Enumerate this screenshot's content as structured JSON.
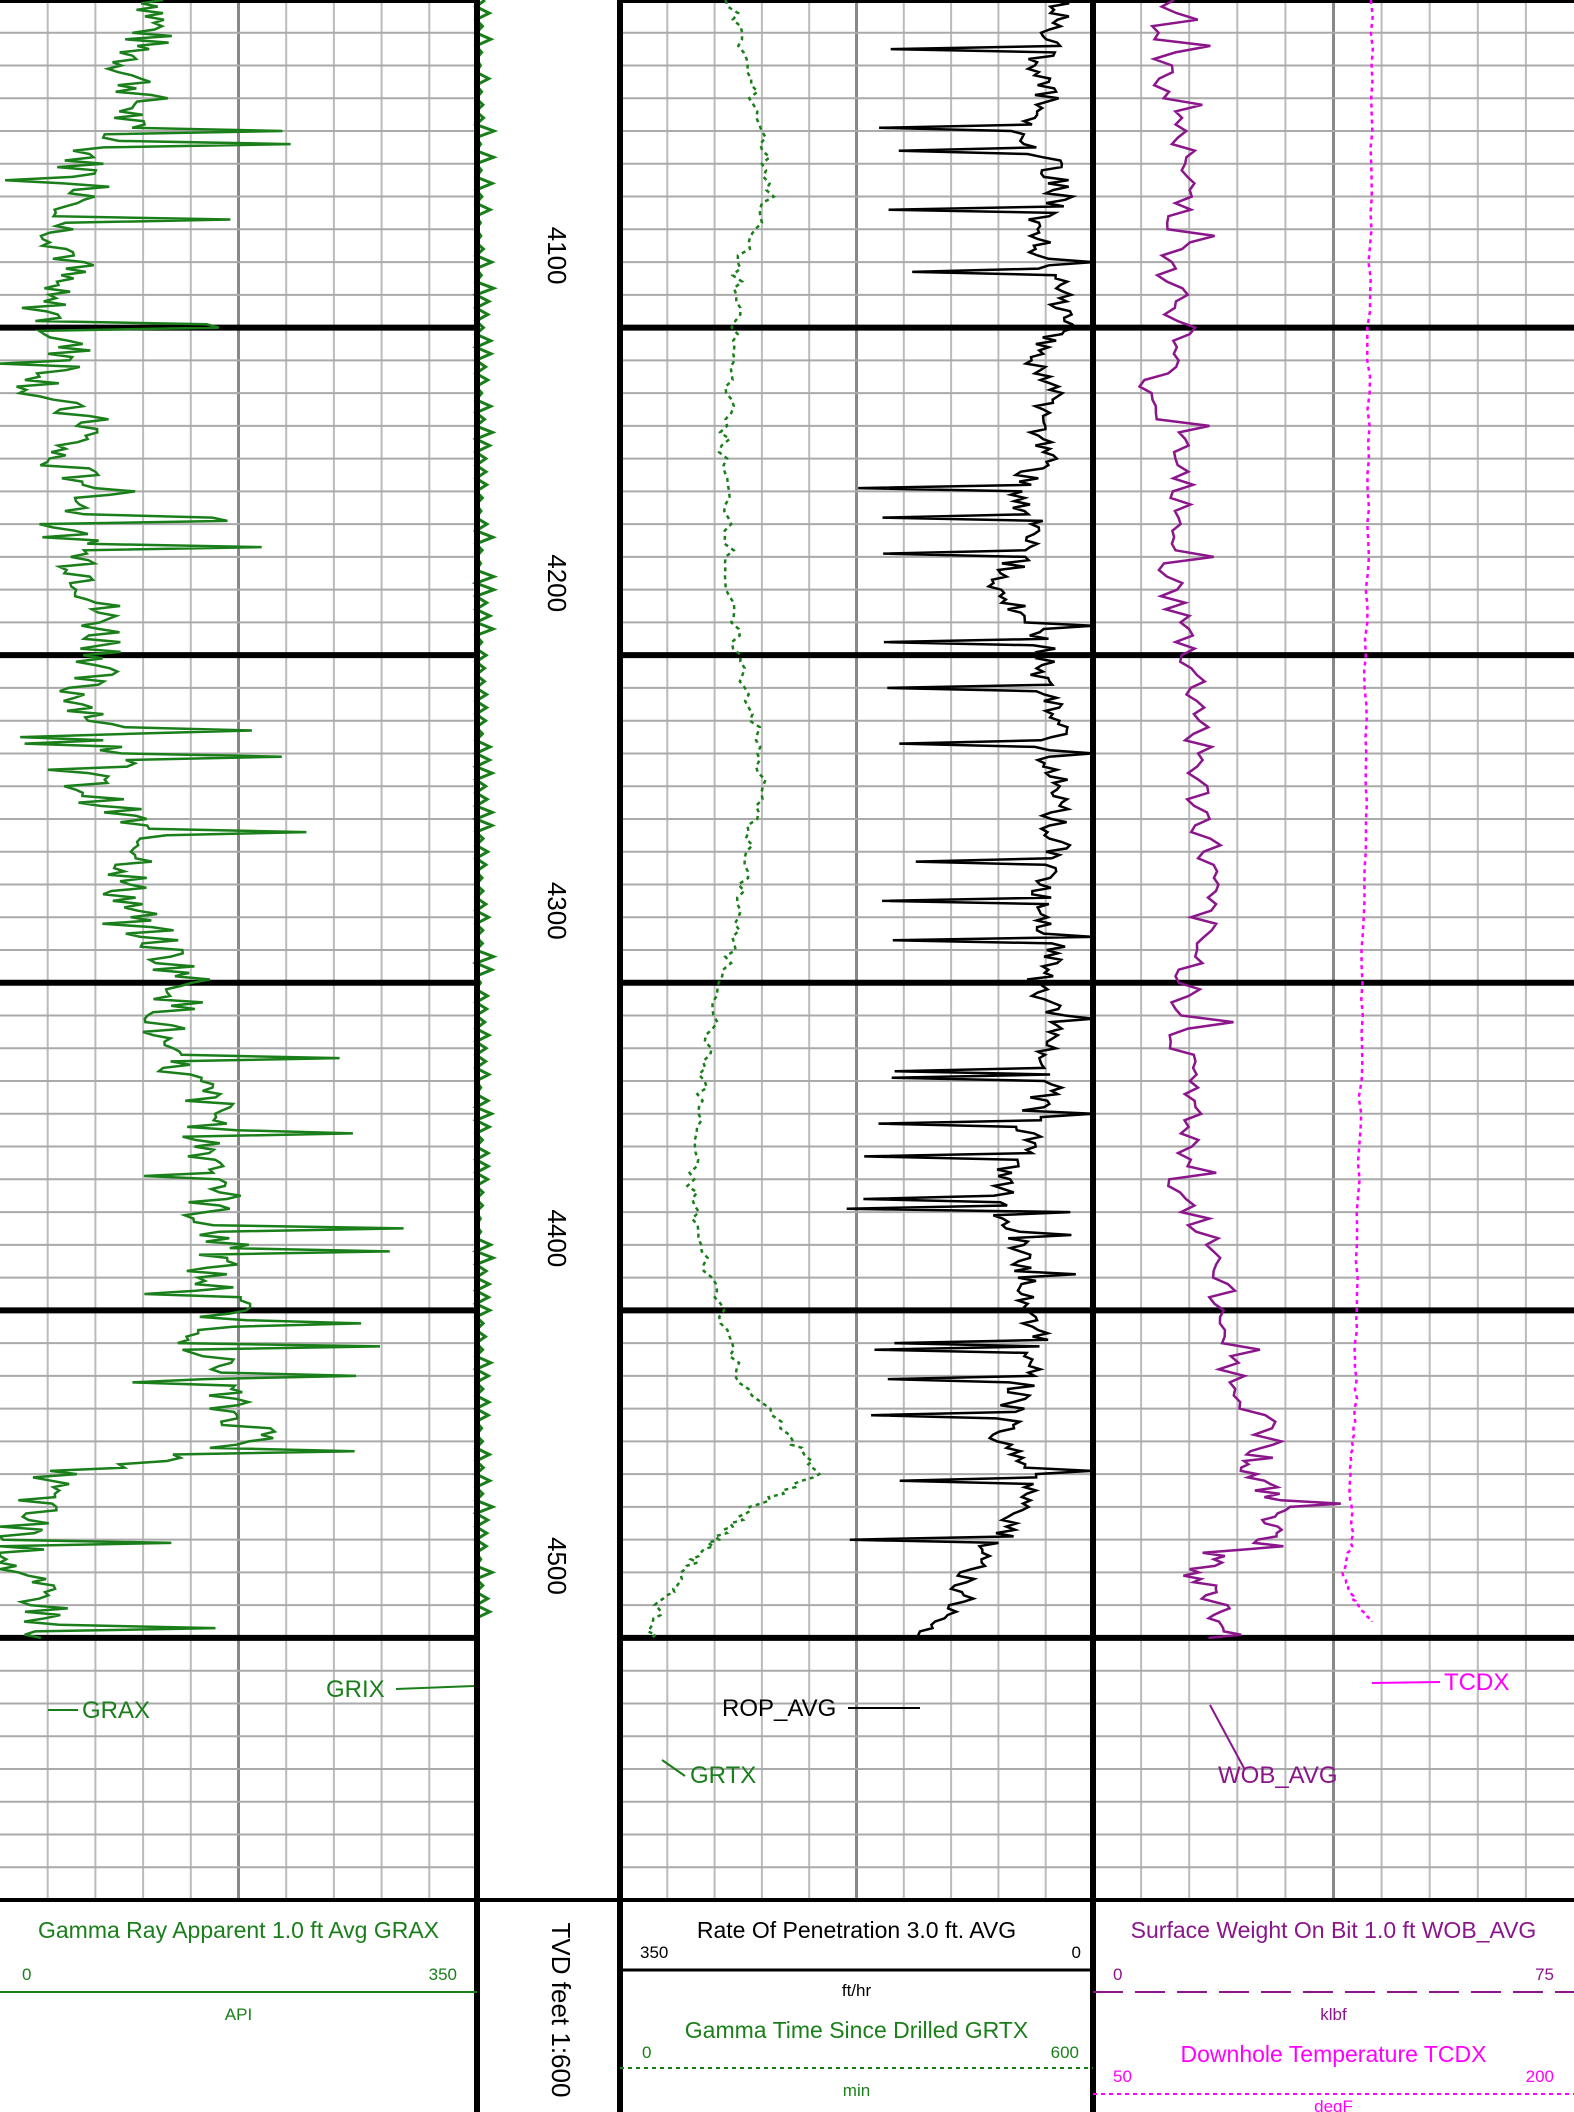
{
  "chart_data": {
    "type": "line",
    "depth_axis": {
      "label": "TVD feet 1:600",
      "ticks": [
        4100,
        4200,
        4300,
        4400,
        4500
      ],
      "range": [
        4000,
        4580
      ]
    },
    "grid": true,
    "tracks": [
      {
        "id": "track1",
        "header": {
          "title": "Gamma Ray Apparent 1.0 ft Avg GRAX",
          "scale_left": "0",
          "scale_right": "350",
          "unit": "API",
          "color": "#1a7f1a"
        },
        "curves": [
          {
            "name": "GRAX",
            "color": "#1a7f1a",
            "style": "solid",
            "range": [
              0,
              350
            ],
            "points": [
              [
                4000,
                120
              ],
              [
                4010,
                110
              ],
              [
                4020,
                95
              ],
              [
                4030,
                105
              ],
              [
                4040,
                85
              ],
              [
                4050,
                60
              ],
              [
                4060,
                70
              ],
              [
                4070,
                45
              ],
              [
                4080,
                55
              ],
              [
                4090,
                30
              ],
              [
                4100,
                40
              ],
              [
                4110,
                55
              ],
              [
                4120,
                25
              ],
              [
                4130,
                70
              ],
              [
                4140,
                35
              ],
              [
                4150,
                80
              ],
              [
                4160,
                45
              ],
              [
                4170,
                60
              ],
              [
                4180,
                70
              ],
              [
                4190,
                75
              ],
              [
                4200,
                80
              ],
              [
                4210,
                55
              ],
              [
                4220,
                75
              ],
              [
                4230,
                90
              ],
              [
                4240,
                60
              ],
              [
                4250,
                95
              ],
              [
                4260,
                110
              ],
              [
                4270,
                90
              ],
              [
                4280,
                100
              ],
              [
                4290,
                120
              ],
              [
                4300,
                140
              ],
              [
                4310,
                125
              ],
              [
                4320,
                110
              ],
              [
                4330,
                140
              ],
              [
                4340,
                160
              ],
              [
                4350,
                150
              ],
              [
                4360,
                170
              ],
              [
                4370,
                150
              ],
              [
                4380,
                165
              ],
              [
                4390,
                150
              ],
              [
                4400,
                170
              ],
              [
                4410,
                150
              ],
              [
                4420,
                160
              ],
              [
                4430,
                165
              ],
              [
                4440,
                200
              ],
              [
                4450,
                40
              ],
              [
                4460,
                25
              ],
              [
                4470,
                15
              ],
              [
                4480,
                10
              ],
              [
                4490,
                35
              ],
              [
                4500,
                30
              ]
            ],
            "label_depth": 4490
          },
          {
            "name": "GRIX",
            "color": "#1a7f1a",
            "style": "solid",
            "range": [
              0,
              350
            ],
            "label_depth": 4486
          }
        ]
      },
      {
        "id": "track2",
        "header": {
          "title": "Rate Of Penetration 3.0 ft. AVG",
          "scale_left": "350",
          "scale_right": "0",
          "unit": "ft/hr",
          "color": "#000000",
          "title2": "Gamma Time Since Drilled GRTX",
          "scale2_left": "0",
          "scale2_right": "600",
          "unit2": "min",
          "color2": "#1a7f1a"
        },
        "curves": [
          {
            "name": "ROP_AVG",
            "color": "#000000",
            "style": "solid",
            "range": [
              350,
              0
            ],
            "points": [
              [
                4000,
                25
              ],
              [
                4010,
                30
              ],
              [
                4020,
                40
              ],
              [
                4030,
                35
              ],
              [
                4040,
                60
              ],
              [
                4050,
                30
              ],
              [
                4060,
                25
              ],
              [
                4070,
                45
              ],
              [
                4080,
                35
              ],
              [
                4090,
                25
              ],
              [
                4100,
                20
              ],
              [
                4110,
                45
              ],
              [
                4120,
                30
              ],
              [
                4130,
                40
              ],
              [
                4140,
                35
              ],
              [
                4150,
                60
              ],
              [
                4160,
                45
              ],
              [
                4170,
                55
              ],
              [
                4180,
                70
              ],
              [
                4190,
                45
              ],
              [
                4200,
                35
              ],
              [
                4210,
                40
              ],
              [
                4220,
                25
              ],
              [
                4230,
                35
              ],
              [
                4240,
                20
              ],
              [
                4250,
                30
              ],
              [
                4260,
                25
              ],
              [
                4270,
                40
              ],
              [
                4280,
                35
              ],
              [
                4290,
                30
              ],
              [
                4300,
                40
              ],
              [
                4310,
                30
              ],
              [
                4320,
                35
              ],
              [
                4330,
                30
              ],
              [
                4340,
                45
              ],
              [
                4350,
                50
              ],
              [
                4360,
                70
              ],
              [
                4370,
                65
              ],
              [
                4380,
                55
              ],
              [
                4390,
                50
              ],
              [
                4400,
                45
              ],
              [
                4410,
                40
              ],
              [
                4420,
                50
              ],
              [
                4430,
                60
              ],
              [
                4440,
                70
              ],
              [
                4450,
                40
              ],
              [
                4460,
                55
              ],
              [
                4470,
                70
              ],
              [
                4480,
                90
              ],
              [
                4490,
                100
              ],
              [
                4500,
                130
              ]
            ],
            "label_depth": 4488
          },
          {
            "name": "GRTX",
            "color": "#1a7f1a",
            "style": "dotted",
            "range": [
              0,
              600
            ],
            "points": [
              [
                4000,
                140
              ],
              [
                4020,
                160
              ],
              [
                4040,
                180
              ],
              [
                4060,
                190
              ],
              [
                4080,
                150
              ],
              [
                4100,
                145
              ],
              [
                4120,
                140
              ],
              [
                4140,
                130
              ],
              [
                4160,
                140
              ],
              [
                4180,
                135
              ],
              [
                4200,
                150
              ],
              [
                4220,
                170
              ],
              [
                4240,
                180
              ],
              [
                4260,
                160
              ],
              [
                4280,
                150
              ],
              [
                4300,
                130
              ],
              [
                4320,
                110
              ],
              [
                4340,
                100
              ],
              [
                4360,
                90
              ],
              [
                4380,
                100
              ],
              [
                4400,
                130
              ],
              [
                4420,
                150
              ],
              [
                4440,
                220
              ],
              [
                4450,
                250
              ],
              [
                4460,
                170
              ],
              [
                4470,
                120
              ],
              [
                4480,
                80
              ],
              [
                4490,
                50
              ],
              [
                4500,
                40
              ]
            ],
            "label_depth": 4508
          }
        ]
      },
      {
        "id": "track3",
        "header": {
          "title": "Surface Weight On Bit 1.0 ft WOB_AVG",
          "scale_left": "0",
          "scale_right": "75",
          "unit": "klbf",
          "color": "#8b158b",
          "title2": "Downhole Temperature TCDX",
          "scale2_left": "50",
          "scale2_right": "200",
          "unit2": "degF",
          "color2": "#ff00ff"
        },
        "curves": [
          {
            "name": "WOB_AVG",
            "color": "#8b158b",
            "style": "solid",
            "range": [
              0,
              75
            ],
            "points": [
              [
                4000,
                12
              ],
              [
                4020,
                10
              ],
              [
                4040,
                13
              ],
              [
                4060,
                15
              ],
              [
                4080,
                12
              ],
              [
                4100,
                14
              ],
              [
                4120,
                9
              ],
              [
                4140,
                15
              ],
              [
                4160,
                14
              ],
              [
                4180,
                12
              ],
              [
                4200,
                15
              ],
              [
                4220,
                17
              ],
              [
                4240,
                16
              ],
              [
                4260,
                18
              ],
              [
                4280,
                17
              ],
              [
                4300,
                15
              ],
              [
                4320,
                14
              ],
              [
                4340,
                16
              ],
              [
                4360,
                12
              ],
              [
                4380,
                19
              ],
              [
                4400,
                20
              ],
              [
                4420,
                22
              ],
              [
                4440,
                28
              ],
              [
                4450,
                24
              ],
              [
                4460,
                30
              ],
              [
                4470,
                27
              ],
              [
                4480,
                15
              ],
              [
                4490,
                20
              ],
              [
                4500,
                18
              ]
            ],
            "label_depth": 4508
          },
          {
            "name": "TCDX",
            "color": "#ff00ff",
            "style": "dotted",
            "range": [
              50,
              200
            ],
            "points": [
              [
                4000,
                137
              ],
              [
                4050,
                137
              ],
              [
                4100,
                136
              ],
              [
                4150,
                136
              ],
              [
                4200,
                135
              ],
              [
                4250,
                135
              ],
              [
                4300,
                134
              ],
              [
                4350,
                133
              ],
              [
                4400,
                132
              ],
              [
                4430,
                132
              ],
              [
                4450,
                130
              ],
              [
                4470,
                131
              ],
              [
                4480,
                128
              ],
              [
                4488,
                131
              ],
              [
                4495,
                137
              ]
            ],
            "label_depth": 4486
          }
        ]
      }
    ]
  }
}
